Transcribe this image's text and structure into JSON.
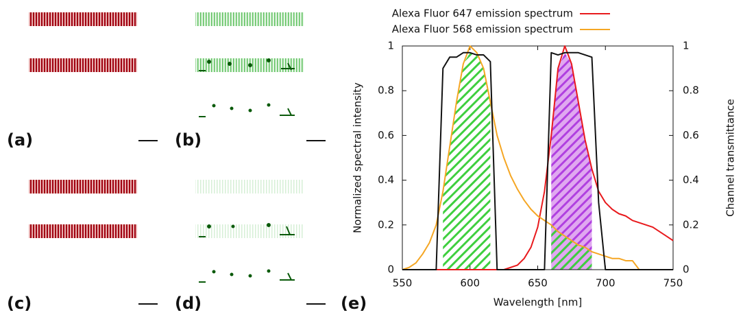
{
  "panels": {
    "labels": [
      "(a)",
      "(b)",
      "(c)",
      "(d)",
      "(e)"
    ]
  },
  "chart_data": {
    "type": "line",
    "xlabel": "Wavelength [nm]",
    "ylabel": "Normalized spectral intensity",
    "y2label": "Channel transmittance",
    "x": [
      550,
      555,
      560,
      565,
      570,
      575,
      580,
      585,
      590,
      595,
      600,
      605,
      610,
      615,
      620,
      625,
      630,
      635,
      640,
      645,
      650,
      655,
      660,
      665,
      670,
      675,
      680,
      685,
      690,
      695,
      700,
      705,
      710,
      715,
      720,
      725,
      730,
      735,
      740,
      745,
      750
    ],
    "series": [
      {
        "name": "Alexa Fluor 647 emission spectrum",
        "color": "#e8191c",
        "values": [
          0,
          0,
          0,
          0,
          0,
          0,
          0,
          0,
          0,
          0,
          0,
          0,
          0,
          0,
          0,
          0,
          0.01,
          0.02,
          0.05,
          0.1,
          0.19,
          0.35,
          0.6,
          0.9,
          1.0,
          0.92,
          0.75,
          0.58,
          0.45,
          0.35,
          0.3,
          0.27,
          0.25,
          0.24,
          0.22,
          0.21,
          0.2,
          0.19,
          0.17,
          0.15,
          0.13
        ]
      },
      {
        "name": "Alexa Fluor 568 emission spectrum",
        "color": "#f5a623",
        "values": [
          0,
          0.01,
          0.03,
          0.07,
          0.12,
          0.2,
          0.35,
          0.55,
          0.75,
          0.92,
          1.0,
          0.97,
          0.9,
          0.75,
          0.6,
          0.5,
          0.42,
          0.36,
          0.31,
          0.27,
          0.24,
          0.22,
          0.2,
          0.17,
          0.15,
          0.13,
          0.11,
          0.1,
          0.08,
          0.07,
          0.06,
          0.05,
          0.05,
          0.04,
          0.04,
          0,
          0,
          0,
          0,
          0,
          0
        ]
      },
      {
        "color": "#111111",
        "axis": "y2",
        "values": [
          0,
          0,
          0,
          0,
          0,
          0,
          0.9,
          0.95,
          0.95,
          0.97,
          0.97,
          0.96,
          0.96,
          0.93,
          0,
          0,
          0,
          0,
          0,
          0,
          0,
          0,
          0.97,
          0.96,
          0.97,
          0.97,
          0.97,
          0.96,
          0.95,
          0.3,
          0,
          0,
          0,
          0,
          0,
          0,
          0,
          0,
          0,
          0,
          0
        ]
      }
    ],
    "xlim": [
      550,
      750
    ],
    "xticks": [
      550,
      600,
      650,
      700,
      750
    ],
    "ylim": [
      0,
      1
    ],
    "yticks": [
      0,
      0.2,
      0.4,
      0.6,
      0.8,
      1
    ],
    "y2lim": [
      0,
      1
    ],
    "y2ticks": [
      0,
      0.2,
      0.4,
      0.6,
      0.8,
      1
    ]
  }
}
